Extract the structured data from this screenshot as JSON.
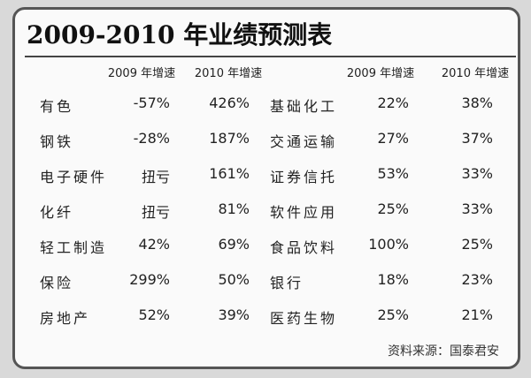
{
  "title": "2009-2010 年业绩预测表",
  "table": {
    "header": [
      "2009 年增速",
      "2010 年增速",
      "2009 年增速",
      "2010 年增速"
    ],
    "rows": [
      [
        "有色",
        "-57%",
        "426%",
        "基础化工",
        "22%",
        "38%"
      ],
      [
        "钢铁",
        "-28%",
        "187%",
        "交通运输",
        "27%",
        "37%"
      ],
      [
        "电子硬件",
        "扭亏",
        "161%",
        "证券信托",
        "53%",
        "33%"
      ],
      [
        "化纤",
        "扭亏",
        "81%",
        "软件应用",
        "25%",
        "33%"
      ],
      [
        "轻工制造",
        "42%",
        "69%",
        "食品饮料",
        "100%",
        "25%"
      ],
      [
        "保险",
        "299%",
        "50%",
        "银行",
        "18%",
        "23%"
      ],
      [
        "房地产",
        "52%",
        "39%",
        "医药生物",
        "25%",
        "21%"
      ]
    ]
  },
  "source": "资料来源：国泰君安"
}
